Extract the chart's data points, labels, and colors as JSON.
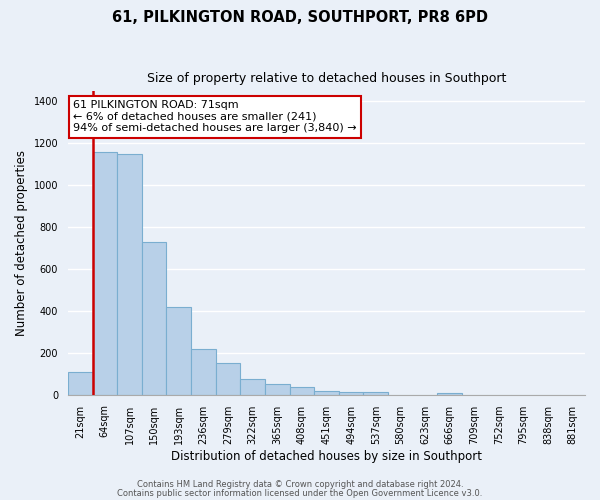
{
  "title": "61, PILKINGTON ROAD, SOUTHPORT, PR8 6PD",
  "subtitle": "Size of property relative to detached houses in Southport",
  "xlabel": "Distribution of detached houses by size in Southport",
  "ylabel": "Number of detached properties",
  "bar_labels": [
    "21sqm",
    "64sqm",
    "107sqm",
    "150sqm",
    "193sqm",
    "236sqm",
    "279sqm",
    "322sqm",
    "365sqm",
    "408sqm",
    "451sqm",
    "494sqm",
    "537sqm",
    "580sqm",
    "623sqm",
    "666sqm",
    "709sqm",
    "752sqm",
    "795sqm",
    "838sqm",
    "881sqm"
  ],
  "bar_values": [
    110,
    1160,
    1150,
    730,
    420,
    220,
    150,
    75,
    50,
    35,
    20,
    15,
    15,
    0,
    0,
    10,
    0,
    0,
    0,
    0,
    0
  ],
  "bar_color": "#b8d0e8",
  "bar_edge_color": "#7aaed0",
  "highlight_color": "#cc0000",
  "highlight_bar_index": 1,
  "annotation_title": "61 PILKINGTON ROAD: 71sqm",
  "annotation_line1": "← 6% of detached houses are smaller (241)",
  "annotation_line2": "94% of semi-detached houses are larger (3,840) →",
  "annotation_box_color": "#ffffff",
  "annotation_box_edge": "#cc0000",
  "ylim": [
    0,
    1450
  ],
  "yticks": [
    0,
    200,
    400,
    600,
    800,
    1000,
    1200,
    1400
  ],
  "footer1": "Contains HM Land Registry data © Crown copyright and database right 2024.",
  "footer2": "Contains public sector information licensed under the Open Government Licence v3.0.",
  "background_color": "#eaf0f8",
  "grid_color": "#ffffff",
  "title_fontsize": 10.5,
  "subtitle_fontsize": 9,
  "ylabel_fontsize": 8.5,
  "xlabel_fontsize": 8.5,
  "tick_fontsize": 7,
  "footer_fontsize": 6,
  "annot_fontsize": 8
}
